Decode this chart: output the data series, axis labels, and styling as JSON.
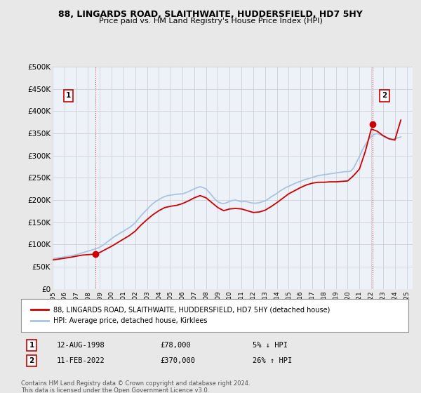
{
  "title": "88, LINGARDS ROAD, SLAITHWAITE, HUDDERSFIELD, HD7 5HY",
  "subtitle": "Price paid vs. HM Land Registry's House Price Index (HPI)",
  "ylabel_ticks": [
    "£0",
    "£50K",
    "£100K",
    "£150K",
    "£200K",
    "£250K",
    "£300K",
    "£350K",
    "£400K",
    "£450K",
    "£500K"
  ],
  "ytick_values": [
    0,
    50000,
    100000,
    150000,
    200000,
    250000,
    300000,
    350000,
    400000,
    450000,
    500000
  ],
  "ylim": [
    0,
    500000
  ],
  "xlim_start": 1995.0,
  "xlim_end": 2025.5,
  "hpi_color": "#a8c4e0",
  "price_color": "#cc0000",
  "marker_color": "#cc0000",
  "bg_color": "#e8e8e8",
  "plot_bg": "#edf1f8",
  "grid_color": "#c8c8d0",
  "legend_label_red": "88, LINGARDS ROAD, SLAITHWAITE, HUDDERSFIELD, HD7 5HY (detached house)",
  "legend_label_blue": "HPI: Average price, detached house, Kirklees",
  "sale1_label": "1",
  "sale1_date": "12-AUG-1998",
  "sale1_price": "£78,000",
  "sale1_hpi": "5% ↓ HPI",
  "sale1_year": 1998.62,
  "sale1_value": 78000,
  "sale2_label": "2",
  "sale2_date": "11-FEB-2022",
  "sale2_price": "£370,000",
  "sale2_hpi": "26% ↑ HPI",
  "sale2_year": 2022.12,
  "sale2_value": 370000,
  "footnote": "Contains HM Land Registry data © Crown copyright and database right 2024.\nThis data is licensed under the Open Government Licence v3.0.",
  "xtick_years": [
    1995,
    1996,
    1997,
    1998,
    1999,
    2000,
    2001,
    2002,
    2003,
    2004,
    2005,
    2006,
    2007,
    2008,
    2009,
    2010,
    2011,
    2012,
    2013,
    2014,
    2015,
    2016,
    2017,
    2018,
    2019,
    2020,
    2021,
    2022,
    2023,
    2024,
    2025
  ],
  "hpi_x": [
    1995.0,
    1995.25,
    1995.5,
    1995.75,
    1996.0,
    1996.25,
    1996.5,
    1996.75,
    1997.0,
    1997.25,
    1997.5,
    1997.75,
    1998.0,
    1998.25,
    1998.5,
    1998.75,
    1999.0,
    1999.25,
    1999.5,
    1999.75,
    2000.0,
    2000.25,
    2000.5,
    2000.75,
    2001.0,
    2001.25,
    2001.5,
    2001.75,
    2002.0,
    2002.25,
    2002.5,
    2002.75,
    2003.0,
    2003.25,
    2003.5,
    2003.75,
    2004.0,
    2004.25,
    2004.5,
    2004.75,
    2005.0,
    2005.25,
    2005.5,
    2005.75,
    2006.0,
    2006.25,
    2006.5,
    2006.75,
    2007.0,
    2007.25,
    2007.5,
    2007.75,
    2008.0,
    2008.25,
    2008.5,
    2008.75,
    2009.0,
    2009.25,
    2009.5,
    2009.75,
    2010.0,
    2010.25,
    2010.5,
    2010.75,
    2011.0,
    2011.25,
    2011.5,
    2011.75,
    2012.0,
    2012.25,
    2012.5,
    2012.75,
    2013.0,
    2013.25,
    2013.5,
    2013.75,
    2014.0,
    2014.25,
    2014.5,
    2014.75,
    2015.0,
    2015.25,
    2015.5,
    2015.75,
    2016.0,
    2016.25,
    2016.5,
    2016.75,
    2017.0,
    2017.25,
    2017.5,
    2017.75,
    2018.0,
    2018.25,
    2018.5,
    2018.75,
    2019.0,
    2019.25,
    2019.5,
    2019.75,
    2020.0,
    2020.25,
    2020.5,
    2020.75,
    2021.0,
    2021.25,
    2021.5,
    2021.75,
    2022.0,
    2022.25,
    2022.5,
    2022.75,
    2023.0,
    2023.25,
    2023.5,
    2023.75,
    2024.0,
    2024.25,
    2024.5
  ],
  "hpi_y": [
    68000,
    69000,
    70000,
    71000,
    72000,
    73000,
    74000,
    75500,
    77000,
    79000,
    81000,
    83000,
    85000,
    87000,
    89000,
    91000,
    94000,
    98000,
    103000,
    108000,
    113000,
    118000,
    122000,
    126000,
    130000,
    134000,
    138000,
    143000,
    149000,
    157000,
    165000,
    172000,
    179000,
    186000,
    192000,
    197000,
    201000,
    205000,
    208000,
    210000,
    211000,
    212000,
    213000,
    213500,
    214000,
    216000,
    219000,
    222000,
    225000,
    228000,
    230000,
    228000,
    225000,
    218000,
    210000,
    202000,
    196000,
    193000,
    192000,
    194000,
    197000,
    199000,
    200000,
    198000,
    196000,
    197000,
    196000,
    194000,
    193000,
    193000,
    194000,
    196000,
    198000,
    202000,
    207000,
    211000,
    215000,
    220000,
    224000,
    228000,
    231000,
    234000,
    237000,
    240000,
    242000,
    245000,
    247000,
    249000,
    251000,
    253000,
    255000,
    256000,
    257000,
    258000,
    259000,
    260000,
    261000,
    262000,
    263000,
    264000,
    264000,
    265000,
    272000,
    285000,
    298000,
    313000,
    325000,
    335000,
    343000,
    348000,
    350000,
    347000,
    344000,
    340000,
    338000,
    337000,
    338000,
    340000,
    342000
  ],
  "price_x": [
    1995.0,
    1995.5,
    1996.0,
    1996.5,
    1997.0,
    1997.5,
    1998.0,
    1998.5,
    1999.0,
    1999.5,
    2000.0,
    2000.5,
    2001.0,
    2001.5,
    2002.0,
    2002.5,
    2003.0,
    2003.5,
    2004.0,
    2004.5,
    2005.0,
    2005.5,
    2006.0,
    2006.5,
    2007.0,
    2007.5,
    2008.0,
    2008.5,
    2009.0,
    2009.5,
    2010.0,
    2010.5,
    2011.0,
    2011.5,
    2012.0,
    2012.5,
    2013.0,
    2013.5,
    2014.0,
    2014.5,
    2015.0,
    2015.5,
    2016.0,
    2016.5,
    2017.0,
    2017.5,
    2018.0,
    2018.5,
    2019.0,
    2019.5,
    2020.0,
    2020.5,
    2021.0,
    2021.5,
    2022.0,
    2022.5,
    2023.0,
    2023.5,
    2024.0,
    2024.5
  ],
  "price_y": [
    65000,
    67000,
    69000,
    71000,
    73500,
    76000,
    77000,
    78000,
    82000,
    89000,
    96000,
    104000,
    112000,
    120000,
    130000,
    144000,
    156000,
    167000,
    176000,
    183000,
    186000,
    188000,
    192000,
    198000,
    205000,
    210000,
    205000,
    194000,
    183000,
    176000,
    180000,
    181000,
    180000,
    176000,
    172000,
    173000,
    177000,
    185000,
    194000,
    204000,
    214000,
    221000,
    228000,
    234000,
    238000,
    240000,
    240000,
    241000,
    241000,
    242000,
    243000,
    255000,
    270000,
    310000,
    360000,
    355000,
    345000,
    338000,
    335000,
    380000
  ]
}
